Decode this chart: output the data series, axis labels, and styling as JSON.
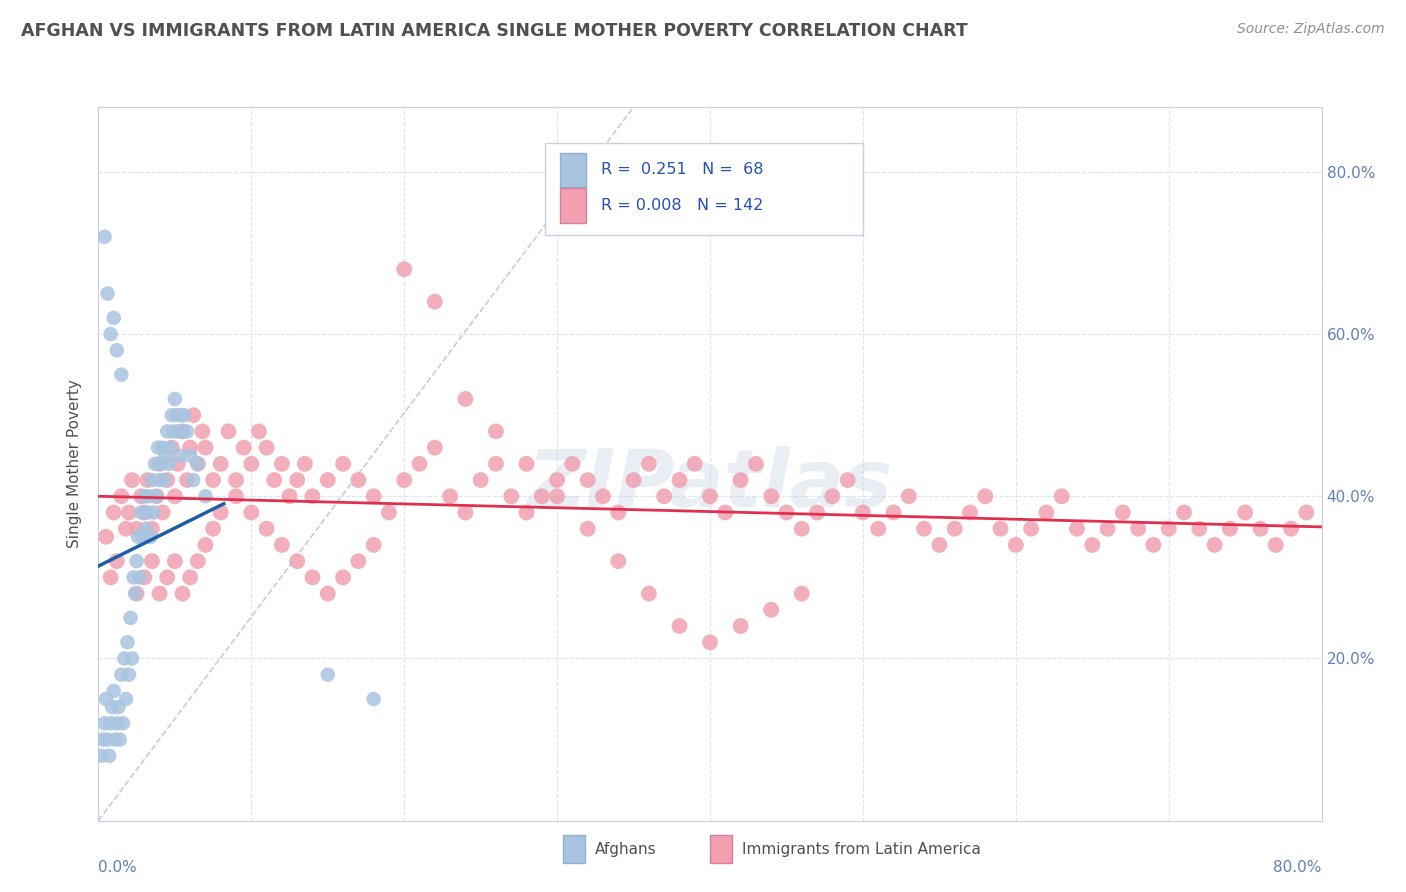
{
  "title": "AFGHAN VS IMMIGRANTS FROM LATIN AMERICA SINGLE MOTHER POVERTY CORRELATION CHART",
  "source": "Source: ZipAtlas.com",
  "ylabel": "Single Mother Poverty",
  "ytick_labels": [
    "20.0%",
    "40.0%",
    "60.0%",
    "80.0%"
  ],
  "legend_r1": "R =  0.251   N =  68",
  "legend_r2": "R = 0.008   N = 142",
  "afghan_color": "#a8c4e0",
  "latin_color": "#f2a0b0",
  "afghan_line_color": "#1a5fa8",
  "latin_line_color": "#e03050",
  "dashed_line_color": "#a8b8d0",
  "watermark": "ZIPatlas",
  "background_color": "#ffffff",
  "plot_bg_color": "#ffffff",
  "grid_color": "#dde4ef",
  "title_color": "#505050",
  "source_color": "#909090",
  "legend_text_color": "#2850b0",
  "axis_label_color": "#6080b8",
  "xlim": [
    0.0,
    0.8
  ],
  "ylim": [
    0.0,
    0.88
  ],
  "ytick_vals": [
    0.2,
    0.4,
    0.6,
    0.8
  ],
  "xtick_vals": [
    0.0,
    0.1,
    0.2,
    0.3,
    0.4,
    0.5,
    0.6,
    0.7,
    0.8
  ],
  "afghan_x": [
    0.002,
    0.003,
    0.004,
    0.005,
    0.006,
    0.007,
    0.008,
    0.009,
    0.01,
    0.011,
    0.012,
    0.013,
    0.014,
    0.015,
    0.016,
    0.017,
    0.018,
    0.019,
    0.02,
    0.021,
    0.022,
    0.023,
    0.024,
    0.025,
    0.026,
    0.027,
    0.028,
    0.029,
    0.03,
    0.031,
    0.032,
    0.033,
    0.034,
    0.035,
    0.036,
    0.037,
    0.038,
    0.039,
    0.04,
    0.041,
    0.042,
    0.043,
    0.044,
    0.045,
    0.046,
    0.047,
    0.048,
    0.049,
    0.05,
    0.051,
    0.052,
    0.053,
    0.054,
    0.055,
    0.056,
    0.058,
    0.06,
    0.062,
    0.065,
    0.07,
    0.004,
    0.006,
    0.008,
    0.01,
    0.012,
    0.015,
    0.15,
    0.18
  ],
  "afghan_y": [
    0.08,
    0.1,
    0.12,
    0.15,
    0.1,
    0.08,
    0.12,
    0.14,
    0.16,
    0.1,
    0.12,
    0.14,
    0.1,
    0.18,
    0.12,
    0.2,
    0.15,
    0.22,
    0.18,
    0.25,
    0.2,
    0.3,
    0.28,
    0.32,
    0.35,
    0.3,
    0.38,
    0.35,
    0.4,
    0.36,
    0.38,
    0.4,
    0.35,
    0.42,
    0.38,
    0.44,
    0.4,
    0.46,
    0.42,
    0.44,
    0.46,
    0.42,
    0.45,
    0.48,
    0.44,
    0.46,
    0.5,
    0.48,
    0.52,
    0.5,
    0.48,
    0.45,
    0.5,
    0.48,
    0.5,
    0.48,
    0.45,
    0.42,
    0.44,
    0.4,
    0.72,
    0.65,
    0.6,
    0.62,
    0.58,
    0.55,
    0.18,
    0.15
  ],
  "latin_x": [
    0.005,
    0.008,
    0.01,
    0.012,
    0.015,
    0.018,
    0.02,
    0.022,
    0.025,
    0.028,
    0.03,
    0.032,
    0.035,
    0.038,
    0.04,
    0.042,
    0.045,
    0.048,
    0.05,
    0.052,
    0.055,
    0.058,
    0.06,
    0.062,
    0.065,
    0.068,
    0.07,
    0.075,
    0.08,
    0.085,
    0.09,
    0.095,
    0.1,
    0.105,
    0.11,
    0.115,
    0.12,
    0.125,
    0.13,
    0.135,
    0.14,
    0.15,
    0.16,
    0.17,
    0.18,
    0.19,
    0.2,
    0.21,
    0.22,
    0.23,
    0.24,
    0.25,
    0.26,
    0.27,
    0.28,
    0.29,
    0.3,
    0.31,
    0.32,
    0.33,
    0.34,
    0.35,
    0.36,
    0.37,
    0.38,
    0.39,
    0.4,
    0.41,
    0.42,
    0.43,
    0.44,
    0.45,
    0.46,
    0.47,
    0.48,
    0.49,
    0.5,
    0.51,
    0.52,
    0.53,
    0.54,
    0.55,
    0.56,
    0.57,
    0.58,
    0.59,
    0.6,
    0.61,
    0.62,
    0.63,
    0.64,
    0.65,
    0.66,
    0.67,
    0.68,
    0.69,
    0.7,
    0.71,
    0.72,
    0.73,
    0.74,
    0.75,
    0.76,
    0.77,
    0.78,
    0.79,
    0.025,
    0.03,
    0.035,
    0.04,
    0.045,
    0.05,
    0.055,
    0.06,
    0.065,
    0.07,
    0.075,
    0.08,
    0.09,
    0.1,
    0.11,
    0.12,
    0.13,
    0.14,
    0.15,
    0.16,
    0.17,
    0.18,
    0.2,
    0.22,
    0.24,
    0.26,
    0.28,
    0.3,
    0.32,
    0.34,
    0.36,
    0.38,
    0.4,
    0.42,
    0.44,
    0.46
  ],
  "latin_y": [
    0.35,
    0.3,
    0.38,
    0.32,
    0.4,
    0.36,
    0.38,
    0.42,
    0.36,
    0.4,
    0.38,
    0.42,
    0.36,
    0.4,
    0.44,
    0.38,
    0.42,
    0.46,
    0.4,
    0.44,
    0.48,
    0.42,
    0.46,
    0.5,
    0.44,
    0.48,
    0.46,
    0.42,
    0.44,
    0.48,
    0.42,
    0.46,
    0.44,
    0.48,
    0.46,
    0.42,
    0.44,
    0.4,
    0.42,
    0.44,
    0.4,
    0.42,
    0.44,
    0.42,
    0.4,
    0.38,
    0.42,
    0.44,
    0.46,
    0.4,
    0.38,
    0.42,
    0.44,
    0.4,
    0.38,
    0.4,
    0.42,
    0.44,
    0.42,
    0.4,
    0.38,
    0.42,
    0.44,
    0.4,
    0.42,
    0.44,
    0.4,
    0.38,
    0.42,
    0.44,
    0.4,
    0.38,
    0.36,
    0.38,
    0.4,
    0.42,
    0.38,
    0.36,
    0.38,
    0.4,
    0.36,
    0.34,
    0.36,
    0.38,
    0.4,
    0.36,
    0.34,
    0.36,
    0.38,
    0.4,
    0.36,
    0.34,
    0.36,
    0.38,
    0.36,
    0.34,
    0.36,
    0.38,
    0.36,
    0.34,
    0.36,
    0.38,
    0.36,
    0.34,
    0.36,
    0.38,
    0.28,
    0.3,
    0.32,
    0.28,
    0.3,
    0.32,
    0.28,
    0.3,
    0.32,
    0.34,
    0.36,
    0.38,
    0.4,
    0.38,
    0.36,
    0.34,
    0.32,
    0.3,
    0.28,
    0.3,
    0.32,
    0.34,
    0.68,
    0.64,
    0.52,
    0.48,
    0.44,
    0.4,
    0.36,
    0.32,
    0.28,
    0.24,
    0.22,
    0.24,
    0.26,
    0.28
  ]
}
